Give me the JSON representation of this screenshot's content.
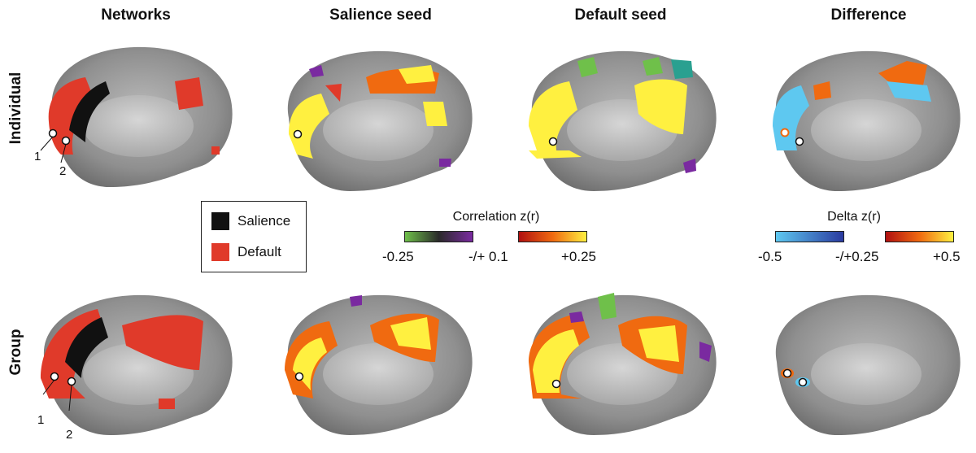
{
  "columns": {
    "networks": "Networks",
    "salience_seed": "Salience seed",
    "default_seed": "Default seed",
    "difference": "Difference"
  },
  "rows": {
    "individual": "Individual",
    "group": "Group"
  },
  "legend": {
    "salience": {
      "label": "Salience",
      "color": "#111111"
    },
    "default": {
      "label": "Default",
      "color": "#e03a2a"
    }
  },
  "correlation_colorbar": {
    "title": "Correlation z(r)",
    "negative_min": "-0.25",
    "threshold": "-/+ 0.1",
    "positive_max": "+0.25"
  },
  "delta_colorbar": {
    "title": "Delta z(r)",
    "negative_min": "-0.5",
    "threshold": "-/+0.25",
    "positive_max": "+0.5"
  },
  "seed_labels": {
    "seed_1": "1",
    "seed_2": "2"
  }
}
